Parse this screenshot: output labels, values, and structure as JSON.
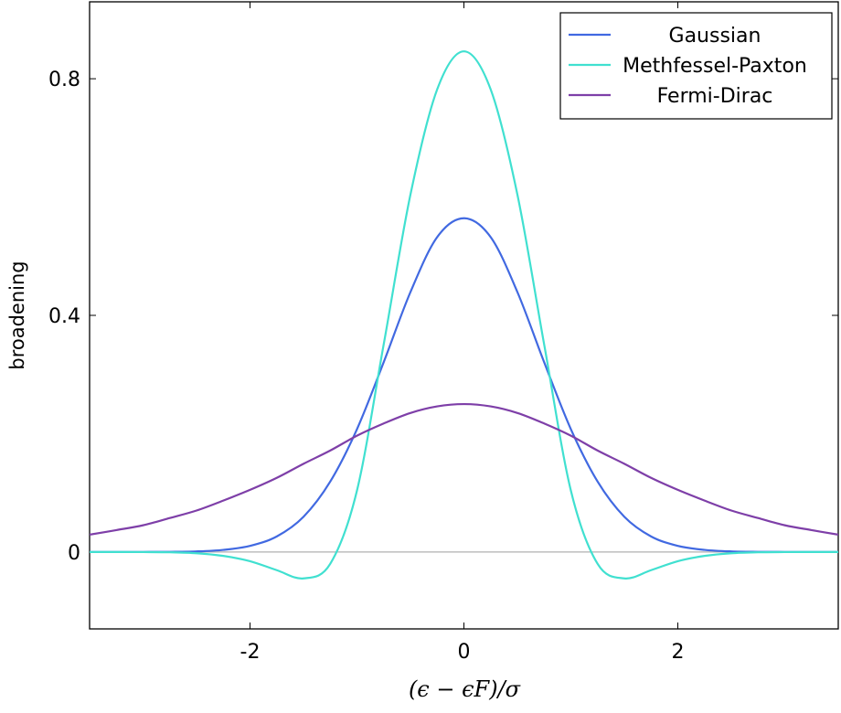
{
  "chart_data": {
    "type": "line",
    "xlabel": "(ϵ − ϵF)/σ",
    "ylabel": "broadening",
    "xlim": [
      -3.5,
      3.5
    ],
    "ylim": [
      -0.13,
      0.93
    ],
    "xticks": [
      -2,
      0,
      2
    ],
    "xtick_labels": [
      "-2",
      "0",
      "2"
    ],
    "yticks": [
      0,
      0.4,
      0.8
    ],
    "ytick_labels": [
      "0",
      "0.4",
      "0.8"
    ],
    "grid": false,
    "zero_line": true,
    "legend_position": "top-right",
    "x": [
      -3.5,
      -3.25,
      -3.0,
      -2.75,
      -2.5,
      -2.25,
      -2.0,
      -1.75,
      -1.5,
      -1.25,
      -1.0,
      -0.75,
      -0.5,
      -0.25,
      0.0,
      0.25,
      0.5,
      0.75,
      1.0,
      1.25,
      1.5,
      1.75,
      2.0,
      2.25,
      2.5,
      2.75,
      3.0,
      3.25,
      3.5
    ],
    "series": [
      {
        "name": "Gaussian",
        "color": "#4169e1",
        "values": [
          0.0,
          0.0,
          0.0001,
          0.0003,
          0.001,
          0.0036,
          0.0103,
          0.0263,
          0.0595,
          0.119,
          0.2076,
          0.3209,
          0.4394,
          0.5323,
          0.5642,
          0.5323,
          0.4394,
          0.3209,
          0.2076,
          0.119,
          0.0595,
          0.0263,
          0.0103,
          0.0036,
          0.001,
          0.0003,
          0.0001,
          0.0,
          0.0
        ]
      },
      {
        "name": "Methfessel-Paxton",
        "color": "#40e0d0",
        "values": [
          0.0,
          0.0,
          -0.0001,
          -0.0005,
          -0.0021,
          -0.0066,
          -0.0155,
          -0.0307,
          -0.0446,
          -0.02,
          0.1038,
          0.3511,
          0.6041,
          0.782,
          0.8463,
          0.782,
          0.6041,
          0.3511,
          0.1038,
          -0.02,
          -0.0446,
          -0.0307,
          -0.0155,
          -0.0066,
          -0.0021,
          -0.0005,
          -0.0001,
          0.0,
          0.0
        ]
      },
      {
        "name": "Fermi-Dirac",
        "color": "#7e3fa8",
        "values": [
          0.0293,
          0.037,
          0.0452,
          0.0574,
          0.0701,
          0.0869,
          0.105,
          0.1253,
          0.1491,
          0.1715,
          0.1966,
          0.2173,
          0.235,
          0.2461,
          0.25,
          0.2461,
          0.235,
          0.2173,
          0.1966,
          0.1715,
          0.1491,
          0.1253,
          0.105,
          0.0869,
          0.0701,
          0.0574,
          0.0452,
          0.037,
          0.0293
        ]
      }
    ]
  }
}
